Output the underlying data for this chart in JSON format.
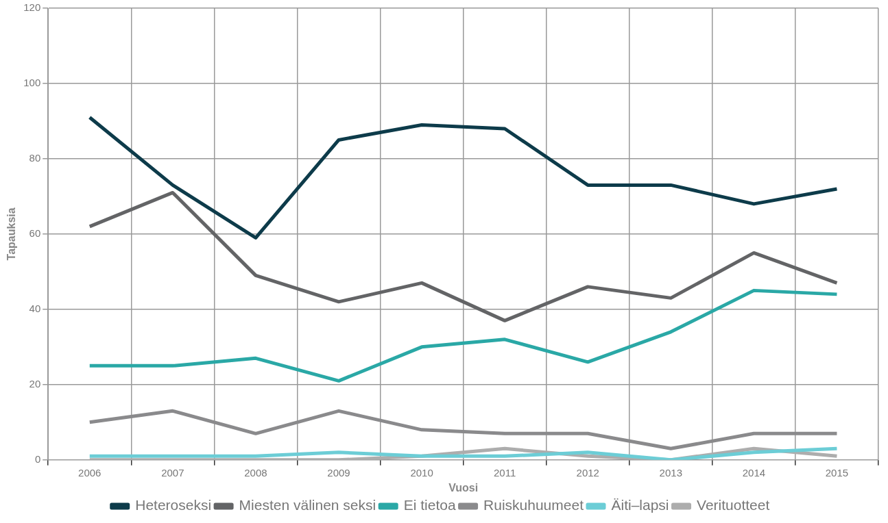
{
  "chart_data": {
    "type": "line",
    "xlabel": "Vuosi",
    "ylabel": "Tapauksia",
    "categories": [
      "2006",
      "2007",
      "2008",
      "2009",
      "2010",
      "2011",
      "2012",
      "2013",
      "2014",
      "2015"
    ],
    "ylim": [
      0,
      120
    ],
    "yticks": [
      0,
      20,
      40,
      60,
      80,
      100,
      120
    ],
    "grid": true,
    "legend": "bottom",
    "marker": "none",
    "line_style": "solid",
    "series": [
      {
        "name": "Heteroseksi",
        "color": "#0d3b4a",
        "values": [
          91,
          73,
          59,
          85,
          89,
          88,
          73,
          73,
          68,
          72
        ]
      },
      {
        "name": "Miesten välinen seksi",
        "color": "#636466",
        "values": [
          62,
          71,
          49,
          42,
          47,
          37,
          46,
          43,
          55,
          47
        ]
      },
      {
        "name": "Ei tietoa",
        "color": "#2aa8a6",
        "values": [
          25,
          25,
          27,
          21,
          30,
          32,
          26,
          34,
          45,
          44
        ]
      },
      {
        "name": "Ruiskuhuumeet",
        "color": "#8a8a8c",
        "values": [
          10,
          13,
          7,
          13,
          8,
          7,
          7,
          3,
          7,
          7
        ]
      },
      {
        "name": "Äiti–lapsi",
        "color": "#6ccdd6",
        "values": [
          1,
          1,
          1,
          2,
          1,
          1,
          2,
          0,
          2,
          3
        ]
      },
      {
        "name": "Verituotteet",
        "color": "#adadad",
        "values": [
          0,
          0,
          0,
          0,
          1,
          3,
          1,
          0,
          3,
          1
        ]
      }
    ]
  }
}
